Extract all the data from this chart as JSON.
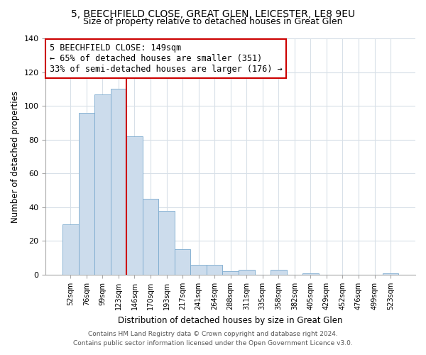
{
  "title": "5, BEECHFIELD CLOSE, GREAT GLEN, LEICESTER, LE8 9EU",
  "subtitle": "Size of property relative to detached houses in Great Glen",
  "xlabel": "Distribution of detached houses by size in Great Glen",
  "ylabel": "Number of detached properties",
  "bin_labels": [
    "52sqm",
    "76sqm",
    "99sqm",
    "123sqm",
    "146sqm",
    "170sqm",
    "193sqm",
    "217sqm",
    "241sqm",
    "264sqm",
    "288sqm",
    "311sqm",
    "335sqm",
    "358sqm",
    "382sqm",
    "405sqm",
    "429sqm",
    "452sqm",
    "476sqm",
    "499sqm",
    "523sqm"
  ],
  "bar_values": [
    30,
    96,
    107,
    110,
    82,
    45,
    38,
    15,
    6,
    6,
    2,
    3,
    0,
    3,
    0,
    1,
    0,
    0,
    0,
    0,
    1
  ],
  "bar_color": "#ccdcec",
  "bar_edge_color": "#7aaace",
  "vline_color": "#cc0000",
  "annotation_line1": "5 BEECHFIELD CLOSE: 149sqm",
  "annotation_line2": "← 65% of detached houses are smaller (351)",
  "annotation_line3": "33% of semi-detached houses are larger (176) →",
  "annotation_box_edge_color": "#cc0000",
  "annotation_fontsize": 8.5,
  "ylim": [
    0,
    140
  ],
  "yticks": [
    0,
    20,
    40,
    60,
    80,
    100,
    120,
    140
  ],
  "footer_line1": "Contains HM Land Registry data © Crown copyright and database right 2024.",
  "footer_line2": "Contains public sector information licensed under the Open Government Licence v3.0.",
  "background_color": "#ffffff",
  "grid_color": "#d8e0e8",
  "title_fontsize": 10,
  "subtitle_fontsize": 9
}
